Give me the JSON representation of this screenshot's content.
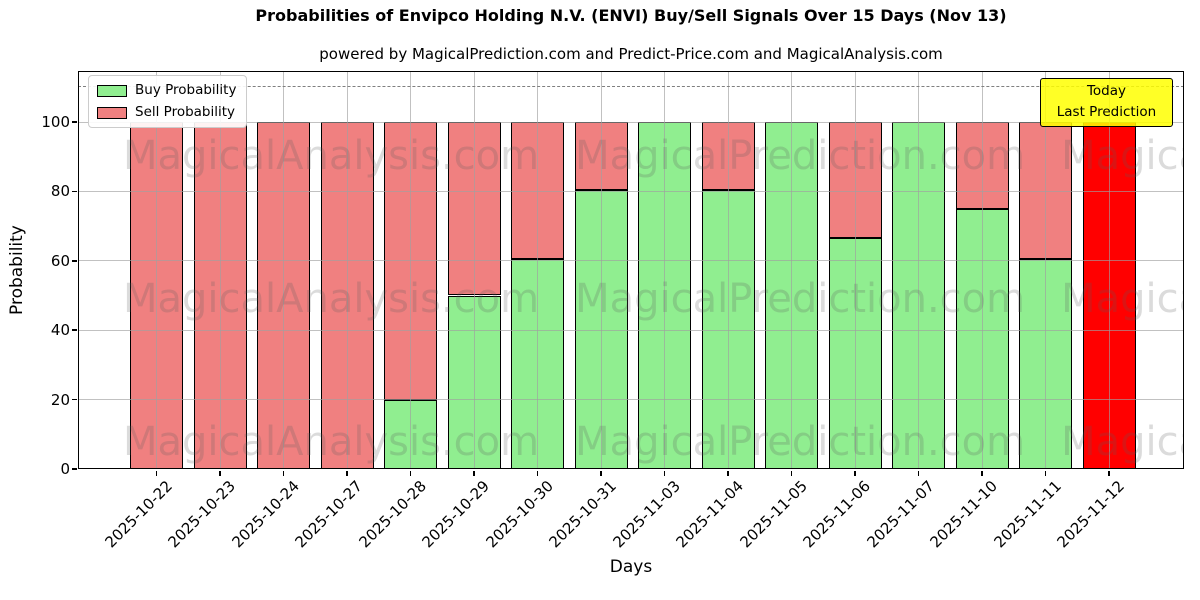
{
  "chart_data": {
    "type": "bar",
    "stacked": true,
    "title": "Probabilities of Envipco Holding N.V. (ENVI) Buy/Sell Signals Over 15 Days (Nov 13)",
    "subtitle": "powered by MagicalPrediction.com and Predict-Price.com and MagicalAnalysis.com",
    "xlabel": "Days",
    "ylabel": "Probability",
    "categories": [
      "2025-10-22",
      "2025-10-23",
      "2025-10-24",
      "2025-10-27",
      "2025-10-28",
      "2025-10-29",
      "2025-10-30",
      "2025-10-31",
      "2025-11-03",
      "2025-11-04",
      "2025-11-05",
      "2025-11-06",
      "2025-11-07",
      "2025-11-10",
      "2025-11-11",
      "2025-11-12"
    ],
    "series": [
      {
        "name": "Buy Probability",
        "color": "#90ee90",
        "values": [
          0,
          0,
          0,
          0,
          20,
          50,
          60.5,
          80.5,
          100,
          80.5,
          100,
          66.5,
          100,
          75,
          60.5,
          0
        ]
      },
      {
        "name": "Sell Probability",
        "color": "#f08080",
        "values": [
          100,
          100,
          100,
          100,
          80,
          50,
          39.5,
          19.5,
          0,
          19.5,
          0,
          33.5,
          0,
          25,
          39.5,
          0
        ]
      }
    ],
    "today_bar": {
      "category": "2025-11-12",
      "index": 15,
      "value": 100,
      "color": "#ff0000"
    },
    "today_box": {
      "lines": [
        "Today",
        "Last Prediction"
      ],
      "bg_color": "#ffff00"
    },
    "ylim": [
      0,
      115
    ],
    "yticks": [
      0,
      20,
      40,
      60,
      80,
      100
    ],
    "dashed_line_y": 110,
    "grid": true,
    "legend_position": "upper left",
    "bar_edge_color": "#000000",
    "watermarks": [
      "MagicalAnalysis.com",
      "MagicalPrediction.com"
    ]
  }
}
